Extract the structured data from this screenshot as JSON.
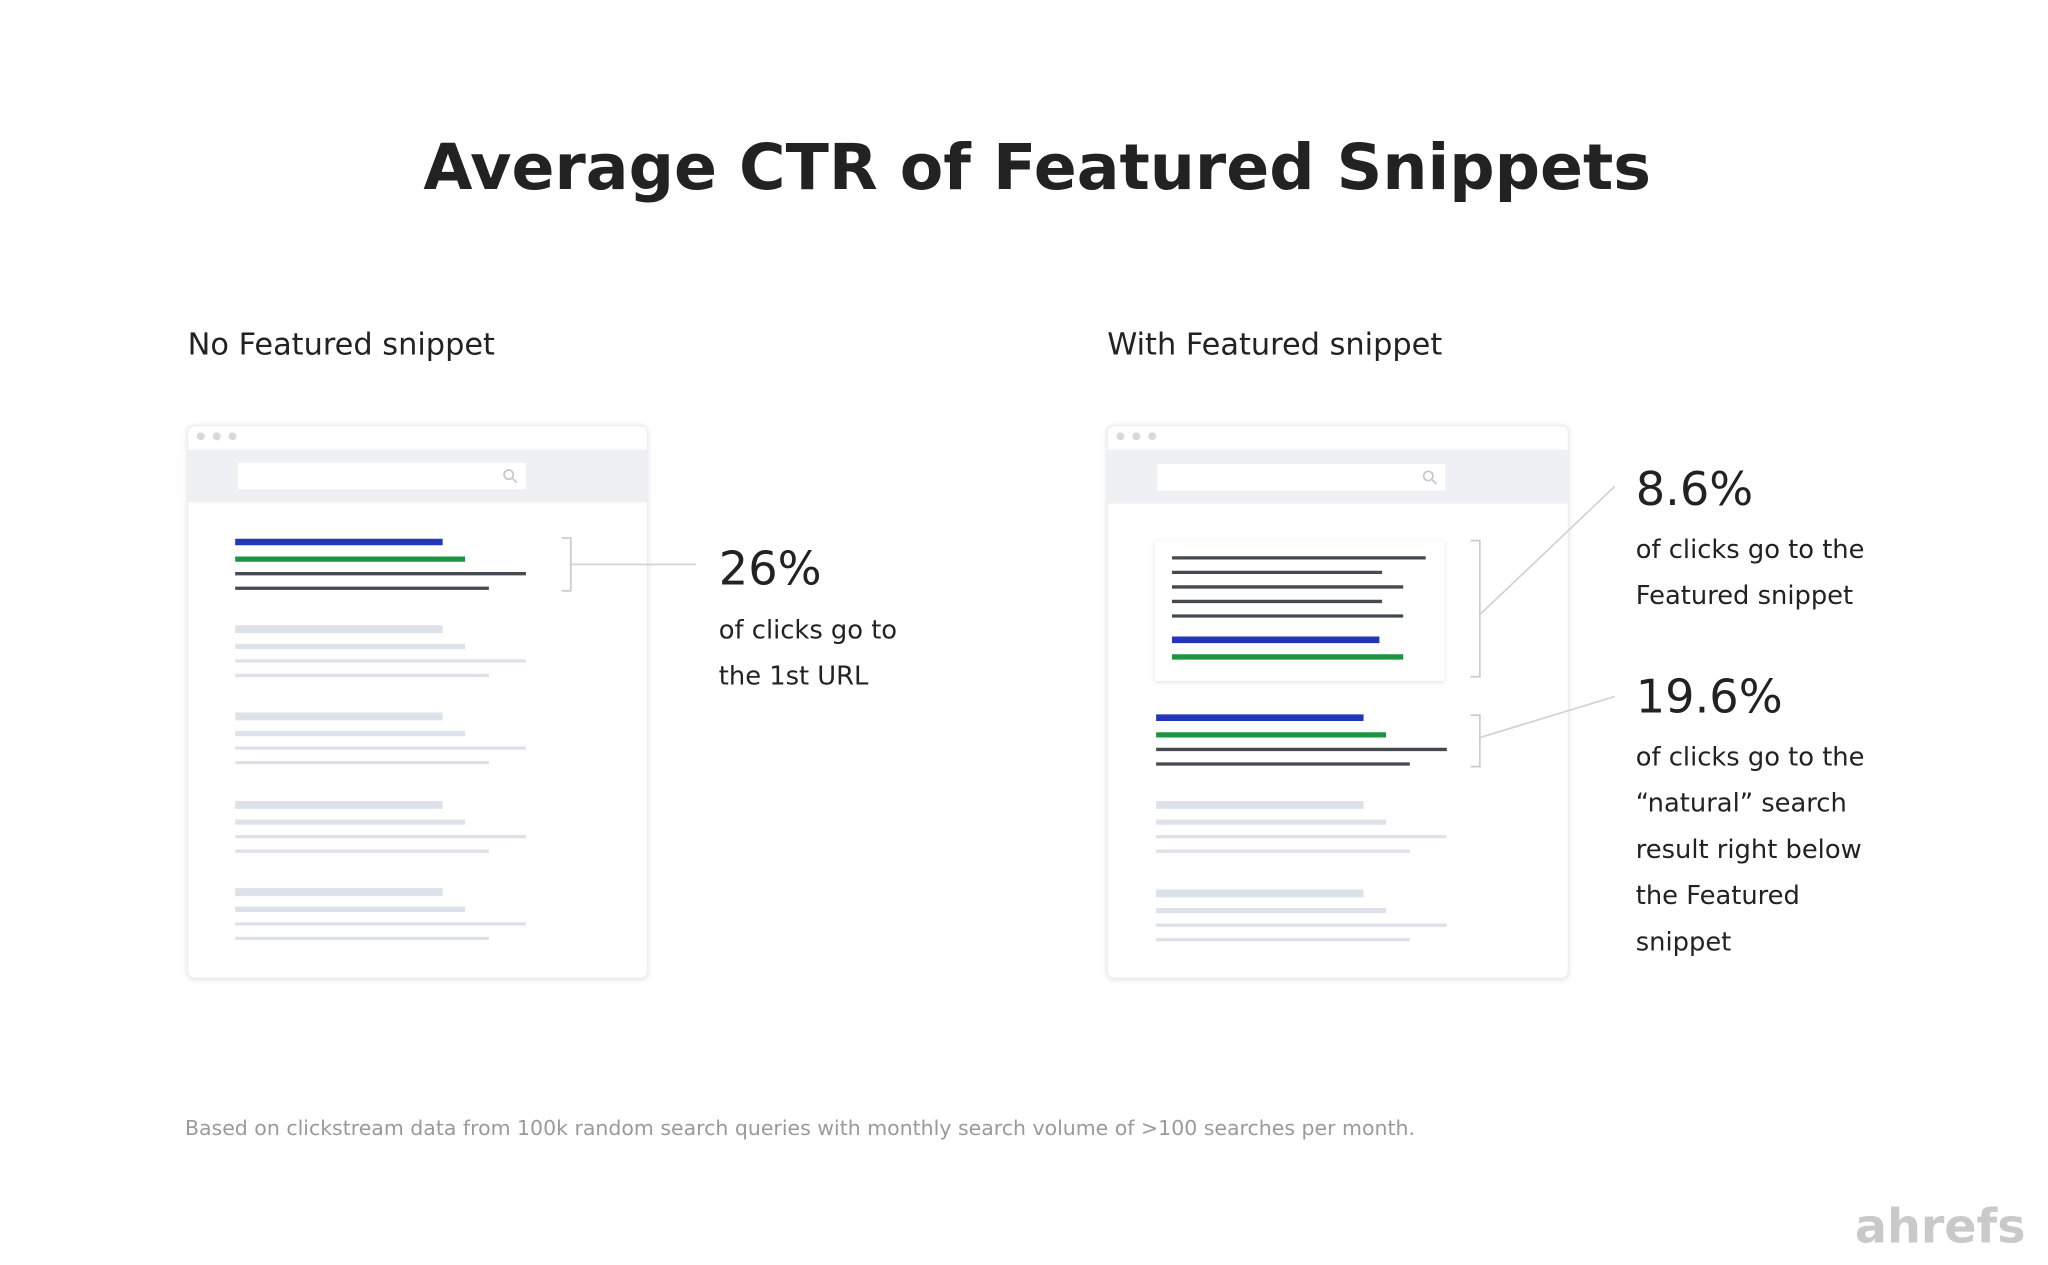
{
  "title": "Average CTR of Featured Snippets",
  "left": {
    "heading": "No Featured snippet",
    "stat": "26%",
    "desc": [
      "of clicks go to",
      "the 1st URL"
    ]
  },
  "right": {
    "heading": "With Featured snippet",
    "snippet_stat": "8.6%",
    "snippet_desc": [
      "of clicks go to the",
      "Featured snippet"
    ],
    "natural_stat": "19.6%",
    "natural_desc": [
      "of clicks go to the",
      "“natural” search",
      "result right below",
      "the Featured",
      "snippet"
    ]
  },
  "footnote": "Based on clickstream data from 100k random search queries with monthly search volume of >100 searches per month.",
  "logo": "ahrefs",
  "colors": {
    "link_blue": "#2336b8",
    "url_green": "#1e9442",
    "text_dark": "#444a50",
    "placeholder_gray": "#dde2ea",
    "brand_gray": "#c9c9c9"
  }
}
